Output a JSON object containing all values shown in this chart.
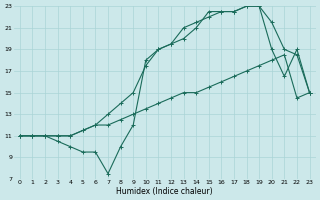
{
  "xlabel": "Humidex (Indice chaleur)",
  "bg_color": "#cce8ea",
  "grid_color": "#aad4d6",
  "line_color": "#1a6b5a",
  "xlim": [
    -0.5,
    23.5
  ],
  "ylim": [
    7,
    23
  ],
  "xticks": [
    0,
    1,
    2,
    3,
    4,
    5,
    6,
    7,
    8,
    9,
    10,
    11,
    12,
    13,
    14,
    15,
    16,
    17,
    18,
    19,
    20,
    21,
    22,
    23
  ],
  "yticks": [
    7,
    9,
    11,
    13,
    15,
    17,
    19,
    21,
    23
  ],
  "line1_x": [
    0,
    1,
    2,
    3,
    4,
    5,
    6,
    7,
    8,
    9,
    10,
    11,
    12,
    13,
    14,
    15,
    16,
    17,
    18,
    19,
    20,
    21,
    22,
    23
  ],
  "line1_y": [
    11,
    11,
    11,
    11,
    11,
    11.5,
    12,
    12,
    12.5,
    13,
    13.5,
    14,
    14.5,
    15,
    15,
    15.5,
    16,
    16.5,
    17,
    17.5,
    18,
    18.5,
    14.5,
    15
  ],
  "line2_x": [
    0,
    1,
    2,
    3,
    4,
    5,
    6,
    7,
    8,
    9,
    10,
    11,
    12,
    13,
    14,
    15,
    16,
    17,
    18,
    19,
    20,
    21,
    22,
    23
  ],
  "line2_y": [
    11,
    11,
    11,
    10.5,
    10,
    9.5,
    9.5,
    7.5,
    10,
    12,
    18,
    19,
    19.5,
    20,
    21,
    22.5,
    22.5,
    22.5,
    23,
    23,
    19,
    16.5,
    19,
    15
  ],
  "line3_x": [
    0,
    1,
    2,
    3,
    4,
    5,
    6,
    7,
    8,
    9,
    10,
    11,
    12,
    13,
    14,
    15,
    16,
    17,
    18,
    19,
    20,
    21,
    22,
    23
  ],
  "line3_y": [
    11,
    11,
    11,
    11,
    11,
    11.5,
    12,
    13,
    14,
    15,
    17.5,
    19,
    19.5,
    21,
    21.5,
    22,
    22.5,
    22.5,
    23,
    23,
    21.5,
    19,
    18.5,
    15
  ]
}
